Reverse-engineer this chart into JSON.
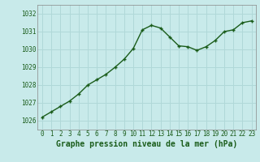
{
  "x": [
    0,
    1,
    2,
    3,
    4,
    5,
    6,
    7,
    8,
    9,
    10,
    11,
    12,
    13,
    14,
    15,
    16,
    17,
    18,
    19,
    20,
    21,
    22,
    23
  ],
  "y": [
    1026.2,
    1026.5,
    1026.8,
    1027.1,
    1027.5,
    1028.0,
    1028.3,
    1028.6,
    1029.0,
    1029.45,
    1030.05,
    1031.1,
    1031.35,
    1031.2,
    1030.7,
    1030.2,
    1030.15,
    1029.95,
    1030.15,
    1030.5,
    1031.0,
    1031.1,
    1031.5,
    1031.6
  ],
  "line_color": "#1a5c1a",
  "marker_color": "#1a5c1a",
  "bg_color": "#c8eaea",
  "grid_color": "#b0d8d8",
  "xlabel": "Graphe pression niveau de la mer (hPa)",
  "xlabel_color": "#1a5c1a",
  "ylim_min": 1025.5,
  "ylim_max": 1032.5,
  "yticks": [
    1026,
    1027,
    1028,
    1029,
    1030,
    1031,
    1032
  ],
  "xticks": [
    0,
    1,
    2,
    3,
    4,
    5,
    6,
    7,
    8,
    9,
    10,
    11,
    12,
    13,
    14,
    15,
    16,
    17,
    18,
    19,
    20,
    21,
    22,
    23
  ],
  "tick_fontsize": 5.5,
  "xlabel_fontsize": 7.0,
  "marker_size": 3.5,
  "line_width": 1.0
}
